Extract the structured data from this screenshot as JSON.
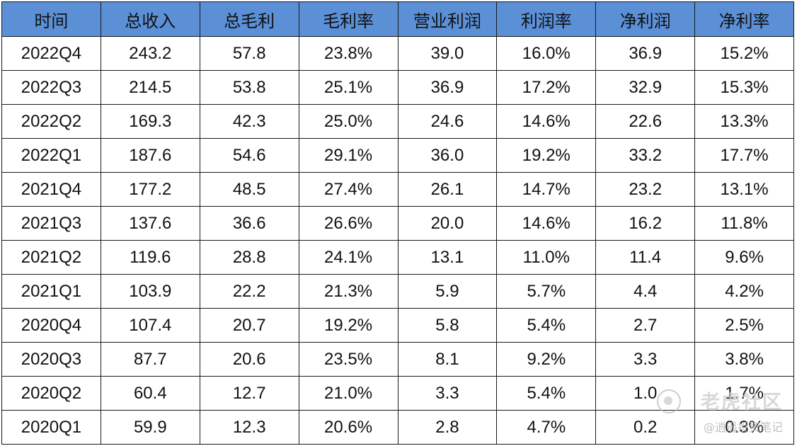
{
  "table": {
    "headers": [
      "时间",
      "总收入",
      "总毛利",
      "毛利率",
      "营业利润",
      "利润率",
      "净利润",
      "净利率"
    ],
    "rows": [
      [
        "2022Q4",
        "243.2",
        "57.8",
        "23.8%",
        "39.0",
        "16.0%",
        "36.9",
        "15.2%"
      ],
      [
        "2022Q3",
        "214.5",
        "53.8",
        "25.1%",
        "36.9",
        "17.2%",
        "32.9",
        "15.3%"
      ],
      [
        "2022Q2",
        "169.3",
        "42.3",
        "25.0%",
        "24.6",
        "14.6%",
        "22.6",
        "13.3%"
      ],
      [
        "2022Q1",
        "187.6",
        "54.6",
        "29.1%",
        "36.0",
        "19.2%",
        "33.2",
        "17.7%"
      ],
      [
        "2021Q4",
        "177.2",
        "48.5",
        "27.4%",
        "26.1",
        "14.7%",
        "23.2",
        "13.1%"
      ],
      [
        "2021Q3",
        "137.6",
        "36.6",
        "26.6%",
        "20.0",
        "14.6%",
        "16.2",
        "11.8%"
      ],
      [
        "2021Q2",
        "119.6",
        "28.8",
        "24.1%",
        "13.1",
        "11.0%",
        "11.4",
        "9.6%"
      ],
      [
        "2021Q1",
        "103.9",
        "22.2",
        "21.3%",
        "5.9",
        "5.7%",
        "4.4",
        "4.2%"
      ],
      [
        "2020Q4",
        "107.4",
        "20.7",
        "19.2%",
        "5.8",
        "5.4%",
        "2.7",
        "2.5%"
      ],
      [
        "2020Q3",
        "87.7",
        "20.6",
        "23.5%",
        "8.1",
        "9.2%",
        "3.3",
        "3.8%"
      ],
      [
        "2020Q2",
        "60.4",
        "12.7",
        "21.0%",
        "3.3",
        "5.4%",
        "1.0",
        "1.7%"
      ],
      [
        "2020Q1",
        "59.9",
        "12.3",
        "20.6%",
        "2.8",
        "4.7%",
        "0.2",
        "0.3%"
      ]
    ]
  },
  "watermark": {
    "logo_icon": "tiger-community-logo-icon",
    "title": "老虎社区",
    "subtitle": "@逍遥投资笔记"
  },
  "colors": {
    "header_background": "#5b8fd6",
    "border": "#1a1a1a",
    "text": "#111111"
  }
}
